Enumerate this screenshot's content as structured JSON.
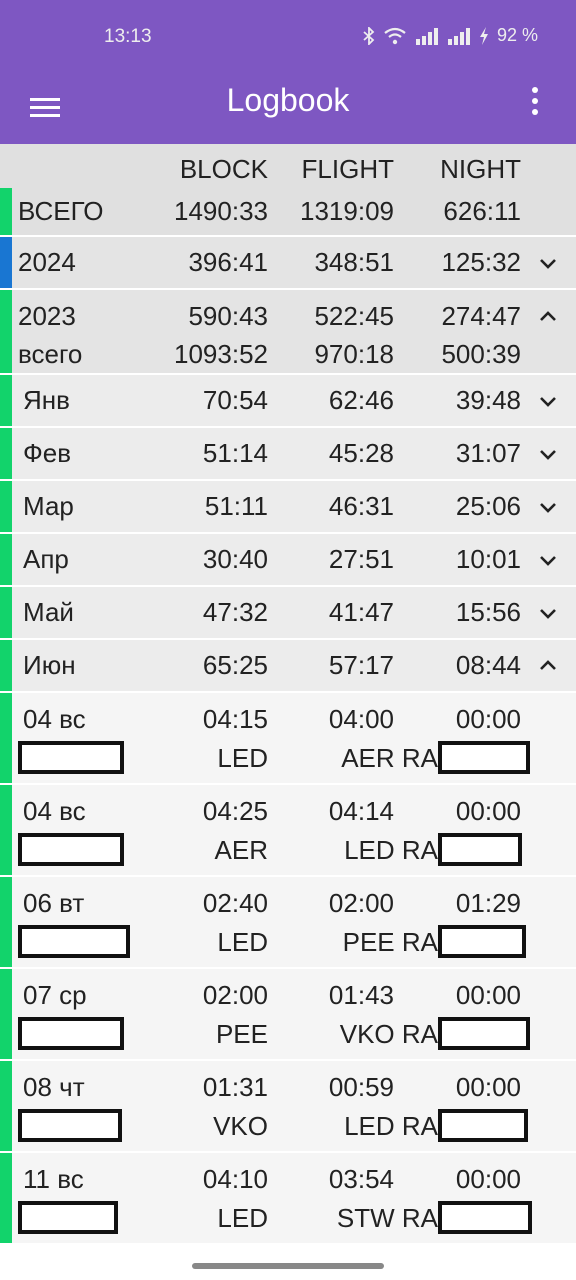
{
  "status": {
    "time": "13:13",
    "battery": "92 %"
  },
  "appbar": {
    "title": "Logbook"
  },
  "columns": {
    "block": "BLOCK",
    "flight": "FLIGHT",
    "night": "NIGHT"
  },
  "colors": {
    "accent": "#7e57c2",
    "green": "#12d36b",
    "blue": "#1976d2"
  },
  "total": {
    "label": "ВСЕГО",
    "block": "1490:33",
    "flight": "1319:09",
    "night": "626:11"
  },
  "year2024": {
    "label": "2024",
    "block": "396:41",
    "flight": "348:51",
    "night": "125:32"
  },
  "year2023": {
    "label": "2023",
    "block": "590:43",
    "flight": "522:45",
    "night": "274:47",
    "sub_label": "всего",
    "sub_block": "1093:52",
    "sub_flight": "970:18",
    "sub_night": "500:39"
  },
  "months": [
    {
      "label": "Янв",
      "block": "70:54",
      "flight": "62:46",
      "night": "39:48"
    },
    {
      "label": "Фев",
      "block": "51:14",
      "flight": "45:28",
      "night": "31:07"
    },
    {
      "label": "Мар",
      "block": "51:11",
      "flight": "46:31",
      "night": "25:06"
    },
    {
      "label": "Апр",
      "block": "30:40",
      "flight": "27:51",
      "night": "10:01"
    },
    {
      "label": "Май",
      "block": "47:32",
      "flight": "41:47",
      "night": "15:56"
    },
    {
      "label": "Июн",
      "block": "65:25",
      "flight": "57:17",
      "night": "08:44"
    }
  ],
  "flights": [
    {
      "date": "04 вс",
      "block": "04:15",
      "flight": "04:00",
      "night": "00:00",
      "from": "LED",
      "to": "AER RA"
    },
    {
      "date": "04 вс",
      "block": "04:25",
      "flight": "04:14",
      "night": "00:00",
      "from": "AER",
      "to": "LED RA"
    },
    {
      "date": "06 вт",
      "block": "02:40",
      "flight": "02:00",
      "night": "01:29",
      "from": "LED",
      "to": "PEE RA"
    },
    {
      "date": "07 ср",
      "block": "02:00",
      "flight": "01:43",
      "night": "00:00",
      "from": "PEE",
      "to": "VKO RA"
    },
    {
      "date": "08 чт",
      "block": "01:31",
      "flight": "00:59",
      "night": "00:00",
      "from": "VKO",
      "to": "LED RA"
    },
    {
      "date": "11 вс",
      "block": "04:10",
      "flight": "03:54",
      "night": "00:00",
      "from": "LED",
      "to": "STW RA"
    }
  ]
}
